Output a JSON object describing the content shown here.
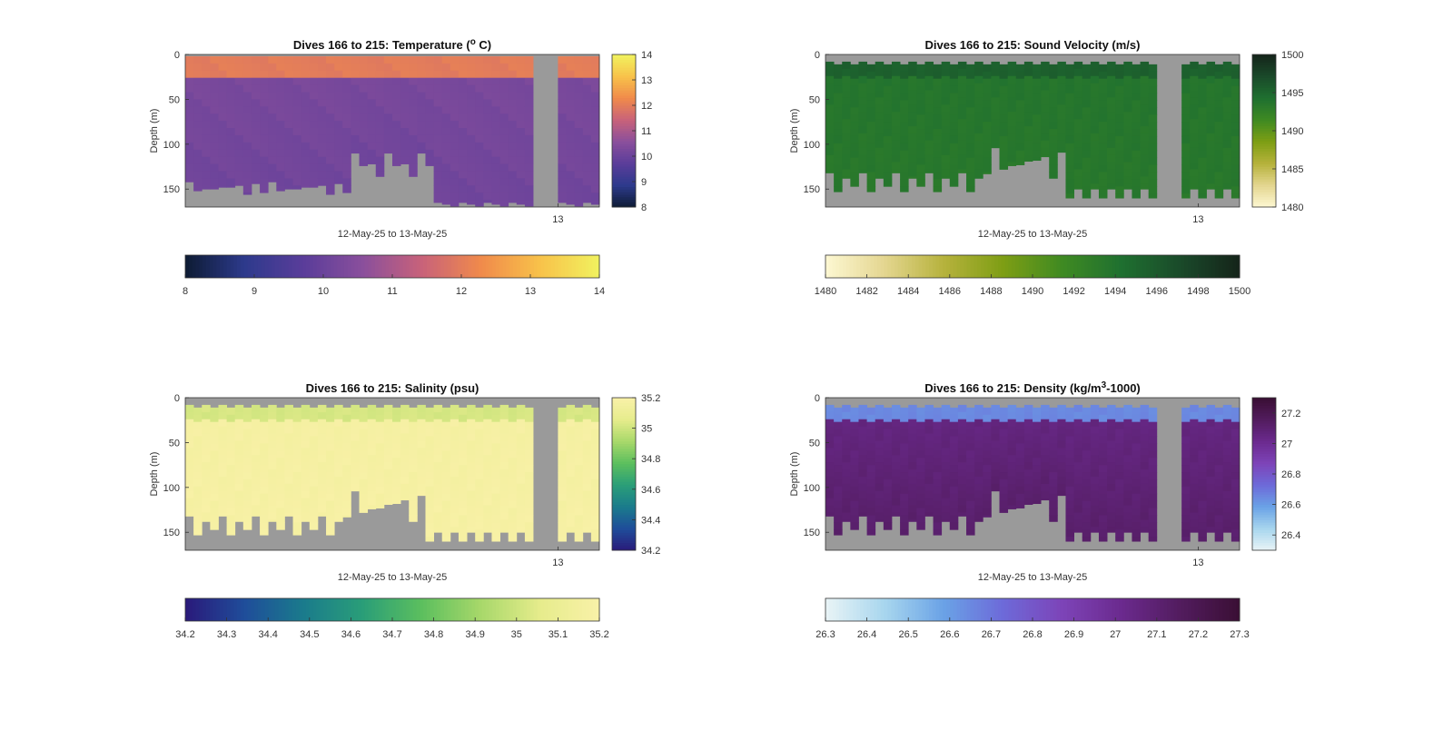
{
  "chart_data": [
    {
      "type": "heatmap",
      "title_main": "Dives 166 to 215: Temperature (",
      "title_sup": "o",
      "title_tail": " C)",
      "ylabel": "Depth (m)",
      "xlabel": "12-May-25 to 13-May-25",
      "x_tick_labels": [
        "13"
      ],
      "x_tick_positions": [
        0.9
      ],
      "y_ticks": [
        0,
        50,
        100,
        150
      ],
      "ylim": [
        0,
        170
      ],
      "colormap": [
        "#0d1b33",
        "#2d3a8c",
        "#5a3d9a",
        "#8a4f9c",
        "#c8627a",
        "#f08a4b",
        "#f8c24a",
        "#f1f25f"
      ],
      "clim": [
        8,
        14
      ],
      "colorbar_ticks": [
        8,
        9,
        10,
        11,
        12,
        13,
        14
      ],
      "horizontal_colorbar_ticks": [
        8,
        9,
        10,
        11,
        12,
        13,
        14
      ],
      "gap_dives": [
        42,
        43,
        44
      ],
      "surface_value": 12.0,
      "deep_value": 10.1,
      "mid_value": 10.3,
      "pattern": "temperature"
    },
    {
      "type": "heatmap",
      "title_main": "Dives 166 to 215: Sound Velocity (m/s)",
      "title_sup": "",
      "title_tail": "",
      "ylabel": "Depth (m)",
      "xlabel": "12-May-25 to 13-May-25",
      "x_tick_labels": [
        "13"
      ],
      "x_tick_positions": [
        0.9
      ],
      "y_ticks": [
        0,
        50,
        100,
        150
      ],
      "ylim": [
        0,
        170
      ],
      "colormap": [
        "#fdf8d3",
        "#e4d690",
        "#b6b23c",
        "#7e9e14",
        "#3f8a22",
        "#1f7030",
        "#1a4a2a",
        "#15241a"
      ],
      "clim": [
        1480,
        1500
      ],
      "colorbar_ticks": [
        1480,
        1485,
        1490,
        1495,
        1500
      ],
      "horizontal_colorbar_ticks": [
        1480,
        1482,
        1484,
        1486,
        1488,
        1490,
        1492,
        1494,
        1496,
        1498,
        1500
      ],
      "gap_dives": [
        40,
        41,
        42
      ],
      "surface_value": 1495.5,
      "deep_value": 1493.4,
      "mid_value": 1493.8,
      "pattern": "velocity"
    },
    {
      "type": "heatmap",
      "title_main": "Dives 166 to 215: Salinity (psu)",
      "title_sup": "",
      "title_tail": "",
      "ylabel": "Depth (m)",
      "xlabel": "12-May-25 to 13-May-25",
      "x_tick_labels": [
        "13"
      ],
      "x_tick_positions": [
        0.9
      ],
      "y_ticks": [
        0,
        50,
        100,
        150
      ],
      "ylim": [
        0,
        170
      ],
      "colormap": [
        "#2a1a7a",
        "#1f4d9a",
        "#1a7b8c",
        "#2a9e78",
        "#5cbf5e",
        "#a8d86a",
        "#e6ec8c",
        "#f9f1a8"
      ],
      "clim": [
        34.2,
        35.2
      ],
      "colorbar_ticks": [
        34.2,
        34.4,
        34.6,
        34.8,
        35,
        35.2
      ],
      "horizontal_colorbar_ticks": [
        34.2,
        34.3,
        34.4,
        34.5,
        34.6,
        34.7,
        34.8,
        34.9,
        35,
        35.1,
        35.2
      ],
      "gap_dives": [
        42,
        43,
        44
      ],
      "surface_value": 35.02,
      "deep_value": 35.18,
      "mid_value": 35.17,
      "pattern": "salinity"
    },
    {
      "type": "heatmap",
      "title_main": "Dives 166 to 215: Density (kg/m",
      "title_sup": "3",
      "title_tail": "-1000)",
      "ylabel": "Depth (m)",
      "xlabel": "12-May-25 to 13-May-25",
      "x_tick_labels": [
        "13"
      ],
      "x_tick_positions": [
        0.9
      ],
      "y_ticks": [
        0,
        50,
        100,
        150
      ],
      "ylim": [
        0,
        170
      ],
      "colormap": [
        "#e9f4f6",
        "#a8d6ee",
        "#6aa2e6",
        "#6d6ad9",
        "#7d44b8",
        "#6b2a8e",
        "#521c5e",
        "#3a0f34"
      ],
      "clim": [
        26.3,
        27.3
      ],
      "colorbar_ticks": [
        26.4,
        26.6,
        26.8,
        27,
        27.2
      ],
      "horizontal_colorbar_ticks": [
        26.3,
        26.4,
        26.5,
        26.6,
        26.7,
        26.8,
        26.9,
        27,
        27.1,
        27.2,
        27.3
      ],
      "gap_dives": [
        40,
        41,
        42
      ],
      "surface_value": 26.65,
      "deep_value": 27.12,
      "mid_value": 27.05,
      "pattern": "density"
    }
  ]
}
